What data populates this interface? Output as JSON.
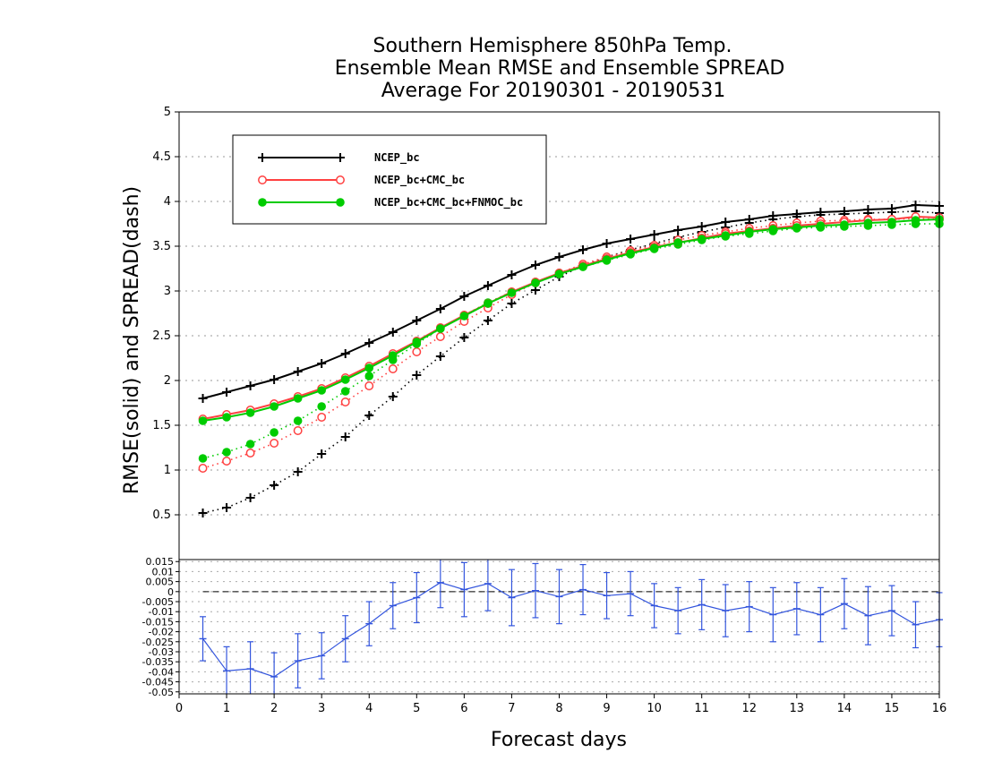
{
  "chart_data": [
    {
      "type": "line",
      "title_lines": [
        "Southern Hemisphere 850hPa Temp.",
        "Ensemble Mean RMSE and Ensemble SPREAD",
        "Average For 20190301 - 20190531"
      ],
      "ylabel": "RMSE(solid)  and  SPREAD(dash)",
      "xlabel": "Forecast days",
      "xlim": [
        0,
        16
      ],
      "ylim": [
        0,
        5
      ],
      "x_ticks": [
        "0",
        "1",
        "2",
        "3",
        "4",
        "5",
        "6",
        "7",
        "8",
        "9",
        "10",
        "11",
        "12",
        "13",
        "14",
        "15",
        "16"
      ],
      "y_ticks": [
        "0.5",
        "1",
        "1.5",
        "2",
        "2.5",
        "3",
        "3.5",
        "4",
        "4.5",
        "5"
      ],
      "grid": "horizontal dotted",
      "legend_position": "top-left",
      "x": [
        0.5,
        1,
        1.5,
        2,
        2.5,
        3,
        3.5,
        4,
        4.5,
        5,
        5.5,
        6,
        6.5,
        7,
        7.5,
        8,
        8.5,
        9,
        9.5,
        10,
        10.5,
        11,
        11.5,
        12,
        12.5,
        13,
        13.5,
        14,
        14.5,
        15,
        15.5,
        16
      ],
      "series": [
        {
          "name": "NCEP_bc",
          "color": "#000000",
          "marker": "plus",
          "rmse": [
            1.8,
            1.87,
            1.94,
            2.01,
            2.1,
            2.19,
            2.3,
            2.42,
            2.54,
            2.67,
            2.8,
            2.94,
            3.06,
            3.18,
            3.29,
            3.38,
            3.46,
            3.53,
            3.58,
            3.63,
            3.68,
            3.72,
            3.77,
            3.8,
            3.84,
            3.86,
            3.88,
            3.89,
            3.91,
            3.92,
            3.96,
            3.95
          ],
          "spread": [
            0.52,
            0.58,
            0.69,
            0.83,
            0.98,
            1.18,
            1.37,
            1.61,
            1.82,
            2.06,
            2.27,
            2.48,
            2.67,
            2.86,
            3.01,
            3.16,
            3.28,
            3.38,
            3.46,
            3.53,
            3.6,
            3.66,
            3.71,
            3.76,
            3.8,
            3.83,
            3.85,
            3.86,
            3.87,
            3.88,
            3.89,
            3.87
          ]
        },
        {
          "name": "NCEP_bc+CMC_bc",
          "color": "#ff4040",
          "marker": "open-circle",
          "rmse": [
            1.57,
            1.62,
            1.67,
            1.74,
            1.82,
            1.91,
            2.03,
            2.16,
            2.3,
            2.44,
            2.59,
            2.73,
            2.86,
            2.99,
            3.1,
            3.2,
            3.28,
            3.36,
            3.43,
            3.49,
            3.54,
            3.59,
            3.64,
            3.67,
            3.7,
            3.73,
            3.75,
            3.77,
            3.79,
            3.8,
            3.83,
            3.82
          ],
          "spread": [
            1.02,
            1.1,
            1.19,
            1.3,
            1.44,
            1.59,
            1.76,
            1.94,
            2.13,
            2.32,
            2.49,
            2.66,
            2.81,
            2.96,
            3.09,
            3.2,
            3.3,
            3.38,
            3.45,
            3.51,
            3.57,
            3.62,
            3.66,
            3.7,
            3.73,
            3.76,
            3.78,
            3.79,
            3.8,
            3.8,
            3.81,
            3.8
          ]
        },
        {
          "name": "NCEP_bc+CMC_bc+FNMOC_bc",
          "color": "#00cc00",
          "marker": "filled-circle",
          "rmse": [
            1.55,
            1.59,
            1.64,
            1.71,
            1.8,
            1.89,
            2.01,
            2.14,
            2.28,
            2.43,
            2.58,
            2.72,
            2.86,
            2.98,
            3.09,
            3.19,
            3.27,
            3.35,
            3.42,
            3.48,
            3.54,
            3.58,
            3.62,
            3.66,
            3.69,
            3.71,
            3.73,
            3.74,
            3.76,
            3.77,
            3.79,
            3.8
          ],
          "spread": [
            1.13,
            1.2,
            1.29,
            1.42,
            1.55,
            1.71,
            1.88,
            2.05,
            2.23,
            2.41,
            2.58,
            2.73,
            2.87,
            2.99,
            3.09,
            3.19,
            3.27,
            3.34,
            3.41,
            3.47,
            3.52,
            3.57,
            3.61,
            3.64,
            3.67,
            3.7,
            3.71,
            3.72,
            3.73,
            3.74,
            3.75,
            3.75
          ]
        }
      ]
    },
    {
      "type": "line",
      "subtype": "errorbar",
      "xlim": [
        0,
        16
      ],
      "ylim": [
        -0.051,
        0.016
      ],
      "y_ticks": [
        "0.015",
        "0.01",
        "0.005",
        "0",
        "-0.005",
        "-0.01",
        "-0.015",
        "-0.02",
        "-0.025",
        "-0.03",
        "-0.035",
        "-0.04",
        "-0.045",
        "-0.05"
      ],
      "reference_line": 0,
      "series": [
        {
          "color": "#3355dd",
          "x": [
            0.5,
            1,
            1.5,
            2,
            2.5,
            3,
            3.5,
            4,
            4.5,
            5,
            5.5,
            6,
            6.5,
            7,
            7.5,
            8,
            8.5,
            9,
            9.5,
            10,
            10.5,
            11,
            11.5,
            12,
            12.5,
            13,
            13.5,
            14,
            14.5,
            15,
            15.5,
            16
          ],
          "values": [
            -0.0235,
            -0.0395,
            -0.0385,
            -0.0425,
            -0.0345,
            -0.032,
            -0.0235,
            -0.016,
            -0.007,
            -0.003,
            0.0045,
            0.001,
            0.004,
            -0.003,
            0.0005,
            -0.0025,
            0.001,
            -0.002,
            -0.001,
            -0.007,
            -0.0095,
            -0.0065,
            -0.0095,
            -0.0075,
            -0.0115,
            -0.0085,
            -0.0115,
            -0.006,
            -0.012,
            -0.0095,
            -0.0165,
            -0.014
          ],
          "error": [
            0.011,
            0.012,
            0.0135,
            0.012,
            0.0135,
            0.0115,
            0.0115,
            0.011,
            0.0115,
            0.0125,
            0.0125,
            0.0135,
            0.0135,
            0.014,
            0.0135,
            0.0135,
            0.0125,
            0.0115,
            0.011,
            0.011,
            0.0115,
            0.0125,
            0.013,
            0.0125,
            0.0135,
            0.013,
            0.0135,
            0.0125,
            0.0145,
            0.0125,
            0.0115,
            0.0135
          ]
        }
      ]
    }
  ]
}
